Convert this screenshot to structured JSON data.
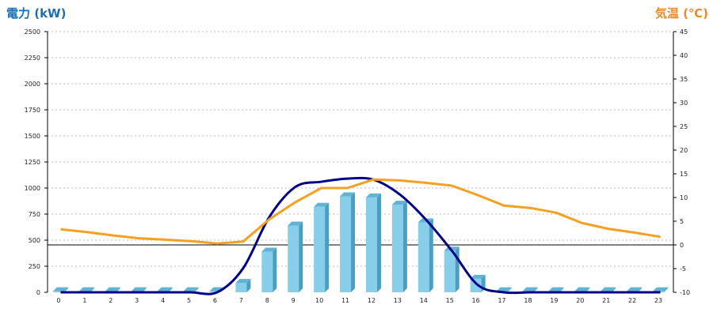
{
  "chart_data": {
    "type": "bar",
    "left_axis_label": "電力 (kW)",
    "right_axis_label": "気温 (℃)",
    "categories": [
      "0",
      "1",
      "2",
      "3",
      "4",
      "5",
      "6",
      "7",
      "8",
      "9",
      "10",
      "11",
      "12",
      "13",
      "14",
      "15",
      "16",
      "17",
      "18",
      "19",
      "20",
      "21",
      "22",
      "23"
    ],
    "y_left_ticks": [
      "0",
      "250",
      "500",
      "750",
      "1000",
      "1250",
      "1500",
      "1750",
      "2000",
      "2250",
      "2500"
    ],
    "y_right_ticks": [
      "-10",
      "-5",
      "0",
      "5",
      "10",
      "15",
      "20",
      "25",
      "30",
      "35",
      "40",
      "45"
    ],
    "y_left_lim": [
      0,
      2500
    ],
    "y_right_lim": [
      -10,
      45
    ],
    "grid": "horizontal dashed",
    "series": [
      {
        "type": "bar",
        "axis": "left",
        "color": "#87ceeb",
        "values": [
          10,
          10,
          10,
          10,
          10,
          10,
          10,
          90,
          390,
          640,
          820,
          920,
          910,
          840,
          670,
          400,
          130,
          10,
          10,
          10,
          10,
          10,
          10,
          10
        ]
      },
      {
        "type": "line",
        "axis": "left",
        "color": "#00008b",
        "values": [
          0,
          0,
          0,
          0,
          0,
          0,
          0,
          230,
          720,
          1010,
          1060,
          1090,
          1080,
          940,
          700,
          400,
          70,
          0,
          0,
          0,
          0,
          0,
          0,
          0
        ]
      },
      {
        "type": "line",
        "axis": "right",
        "color": "#f5a020",
        "values": [
          3.3,
          2.7,
          2.0,
          1.4,
          1.1,
          0.8,
          0.3,
          0.7,
          5.4,
          9.0,
          12.0,
          12.0,
          13.8,
          13.6,
          13.1,
          12.5,
          10.5,
          8.3,
          7.8,
          6.8,
          4.6,
          3.4,
          2.6,
          1.7
        ]
      }
    ]
  }
}
